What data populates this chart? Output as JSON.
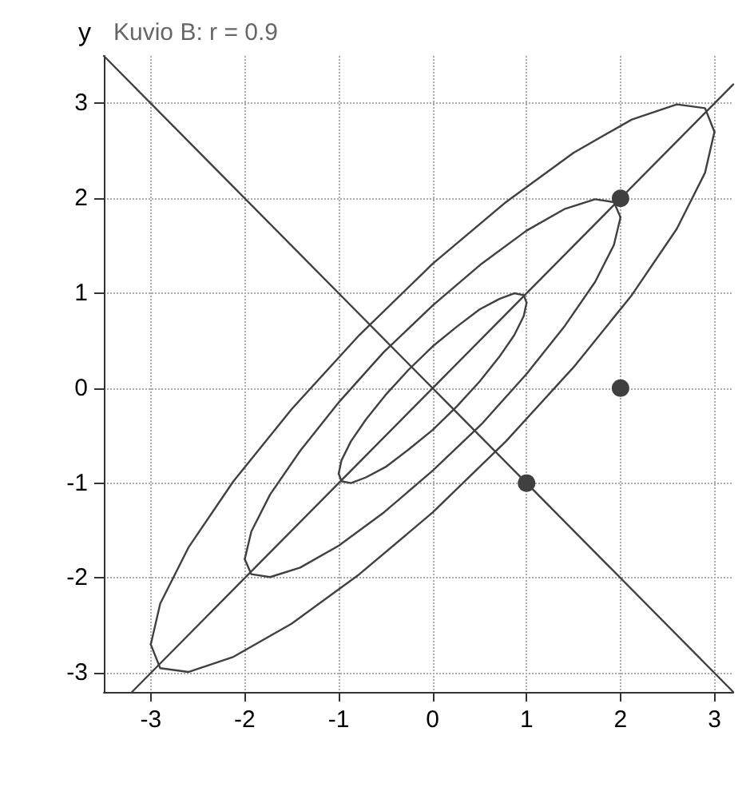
{
  "chart_data": {
    "type": "line",
    "title": "Kuvio B: r = 0.9",
    "ylabel": "y",
    "xlim": [
      -3.5,
      3.2
    ],
    "ylim": [
      -3.2,
      3.5
    ],
    "xticks": [
      -3,
      -2,
      -1,
      0,
      1,
      2,
      3
    ],
    "yticks": [
      -3,
      -2,
      -1,
      0,
      1,
      2,
      3
    ],
    "grid": true,
    "marker": "none",
    "line_style": "solid",
    "series": [
      {
        "color": "#404040",
        "x": [
          -1,
          -0.97,
          -0.87,
          -0.71,
          -0.5,
          -0.26,
          0,
          0.26,
          0.5,
          0.71,
          0.87,
          0.97,
          1
        ],
        "values": [
          -0.9,
          -0.76,
          -0.56,
          -0.33,
          -0.07,
          0.19,
          0.44,
          0.65,
          0.83,
          0.94,
          1,
          0.98,
          0.9
        ]
      },
      {
        "color": "#404040",
        "x": [
          -1,
          -0.97,
          -0.87,
          -0.71,
          -0.5,
          -0.26,
          0,
          0.26,
          0.5,
          0.71,
          0.87,
          0.97,
          1
        ],
        "values": [
          -0.9,
          -0.98,
          -1,
          -0.94,
          -0.83,
          -0.65,
          -0.44,
          -0.19,
          0.07,
          0.33,
          0.56,
          0.76,
          0.9
        ]
      },
      {
        "color": "#404040",
        "x": [
          -2,
          -1.93,
          -1.73,
          -1.41,
          -1,
          -0.52,
          0,
          0.52,
          1,
          1.41,
          1.73,
          1.93,
          2
        ],
        "values": [
          -1.8,
          -1.51,
          -1.12,
          -0.66,
          -0.15,
          0.38,
          0.87,
          1.31,
          1.66,
          1.89,
          1.99,
          1.96,
          1.8
        ]
      },
      {
        "color": "#404040",
        "x": [
          -2,
          -1.93,
          -1.73,
          -1.41,
          -1,
          -0.52,
          0,
          0.52,
          1,
          1.41,
          1.73,
          1.93,
          2
        ],
        "values": [
          -1.8,
          -1.96,
          -1.99,
          -1.89,
          -1.66,
          -1.31,
          -0.87,
          -0.38,
          0.15,
          0.66,
          1.12,
          1.51,
          1.8
        ]
      },
      {
        "color": "#404040",
        "x": [
          -3,
          -2.9,
          -2.6,
          -2.12,
          -1.5,
          -0.78,
          0,
          0.78,
          1.5,
          2.12,
          2.6,
          2.9,
          3
        ],
        "values": [
          -2.7,
          -2.27,
          -1.68,
          -0.98,
          -0.22,
          0.56,
          1.31,
          1.96,
          2.48,
          2.83,
          2.99,
          2.95,
          2.7
        ]
      },
      {
        "color": "#404040",
        "x": [
          -3,
          -2.9,
          -2.6,
          -2.12,
          -1.5,
          -0.78,
          0,
          0.78,
          1.5,
          2.12,
          2.6,
          2.9,
          3
        ],
        "values": [
          -2.7,
          -2.95,
          -2.99,
          -2.83,
          -2.48,
          -1.96,
          -1.31,
          -0.56,
          0.22,
          0.98,
          1.68,
          2.27,
          2.7
        ]
      },
      {
        "color": "#404040",
        "x": [
          -3.2,
          3.2
        ],
        "values": [
          -3.2,
          3.2
        ]
      },
      {
        "color": "#404040",
        "x": [
          -3.5,
          3.2
        ],
        "values": [
          3.5,
          -3.2
        ]
      },
      {
        "type": "scatter",
        "marker": "circle",
        "color": "#404040",
        "x": [
          2,
          2,
          1
        ],
        "values": [
          2,
          0,
          -1
        ]
      }
    ]
  }
}
